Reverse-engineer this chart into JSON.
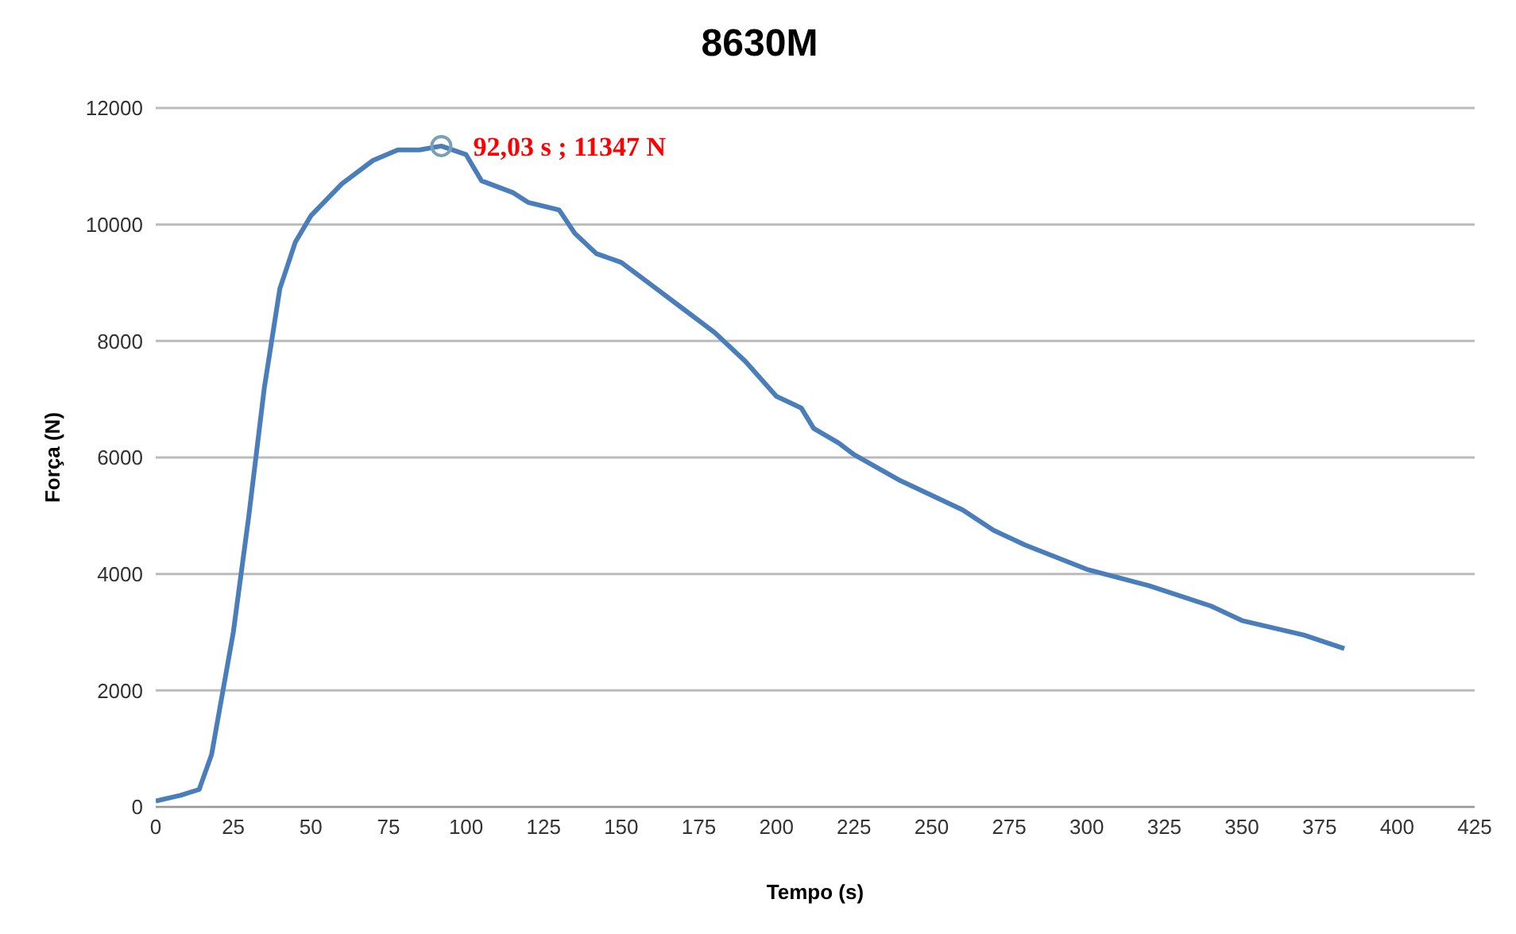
{
  "chart_data": {
    "type": "line",
    "title": "8630M",
    "xlabel": "Tempo (s)",
    "ylabel": "Força (N)",
    "x": [
      0,
      8,
      14,
      18,
      25,
      30,
      35,
      40,
      45,
      50,
      60,
      70,
      78,
      85,
      92.03,
      100,
      105,
      115,
      120,
      130,
      135,
      142,
      150,
      160,
      170,
      180,
      190,
      200,
      208,
      212,
      220,
      225,
      240,
      260,
      270,
      280,
      300,
      320,
      340,
      350,
      370,
      383
    ],
    "series": [
      {
        "color": "#4a7ebb",
        "values": [
          100,
          200,
          300,
          900,
          3000,
          5000,
          7200,
          8900,
          9700,
          10150,
          10700,
          11100,
          11280,
          11280,
          11347,
          11200,
          10750,
          10550,
          10380,
          10250,
          9850,
          9500,
          9350,
          8950,
          8550,
          8150,
          7650,
          7050,
          6850,
          6500,
          6250,
          6050,
          5600,
          5100,
          4750,
          4500,
          4080,
          3800,
          3450,
          3200,
          2950,
          2720
        ]
      }
    ],
    "xlim": [
      0,
      425
    ],
    "xticks": [
      0,
      25,
      50,
      75,
      100,
      125,
      150,
      175,
      200,
      225,
      250,
      275,
      300,
      325,
      350,
      375,
      400,
      425
    ],
    "ylim": [
      0,
      12000
    ],
    "yticks": [
      0,
      2000,
      4000,
      6000,
      8000,
      10000,
      12000
    ],
    "grid": "y",
    "legend": false,
    "marker": "none",
    "line_style": "solid",
    "annotations": [
      {
        "text": "92,03 s ; 11347 N",
        "x": 92.03,
        "y": 11347
      }
    ]
  }
}
